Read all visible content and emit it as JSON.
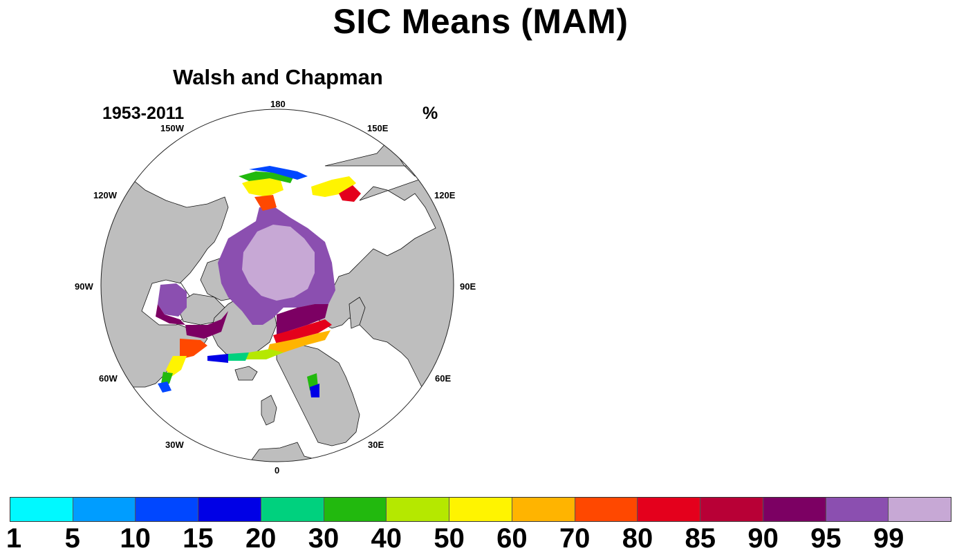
{
  "title": "SIC Means (MAM)",
  "panel": {
    "subtitle": "Walsh and Chapman",
    "period": "1953-2011",
    "units": "%"
  },
  "longitude_labels": [
    "180",
    "150E",
    "120E",
    "90E",
    "60E",
    "30E",
    "0",
    "30W",
    "60W",
    "90W",
    "120W",
    "150W"
  ],
  "colorbar": {
    "colors": [
      "#00f9ff",
      "#009dff",
      "#0047ff",
      "#0000e6",
      "#00d17e",
      "#22b90e",
      "#b5e800",
      "#fff400",
      "#ffb400",
      "#ff4800",
      "#e4001c",
      "#b80036",
      "#7c0063",
      "#8b4fb0",
      "#c7a8d5"
    ],
    "labels": [
      "1",
      "5",
      "10",
      "15",
      "20",
      "30",
      "40",
      "50",
      "60",
      "70",
      "80",
      "85",
      "90",
      "95",
      "99"
    ]
  },
  "map_colors": {
    "land": "#bebebe",
    "ocean": "#ffffff",
    "coast": "#111111"
  }
}
